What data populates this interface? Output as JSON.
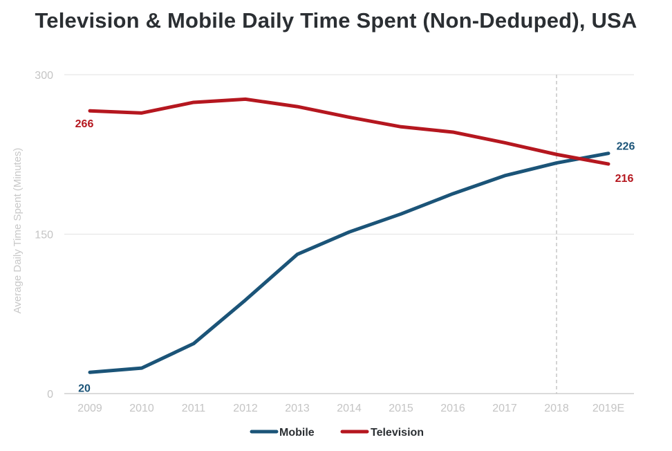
{
  "chart_data": {
    "type": "line",
    "title": "Television & Mobile Daily Time Spent (Non-Deduped), USA",
    "xlabel": "",
    "ylabel": "Average Daily Time Spent (Minutes)",
    "categories": [
      "2009",
      "2010",
      "2011",
      "2012",
      "2013",
      "2014",
      "2015",
      "2016",
      "2017",
      "2018",
      "2019E"
    ],
    "ylim": [
      0,
      300
    ],
    "yticks": [
      0,
      150,
      300
    ],
    "grid": true,
    "legend_position": "bottom-center",
    "divider_after_category": "2018",
    "series": [
      {
        "name": "Mobile",
        "color": "#1b5478",
        "values": [
          20,
          24,
          47,
          88,
          131,
          152,
          169,
          188,
          205,
          217,
          226
        ],
        "labels": {
          "first": "20",
          "last": "226"
        }
      },
      {
        "name": "Television",
        "color": "#b5171f",
        "values": [
          266,
          264,
          274,
          277,
          270,
          260,
          251,
          246,
          236,
          225,
          216
        ],
        "labels": {
          "first": "266",
          "last": "216"
        }
      }
    ]
  }
}
